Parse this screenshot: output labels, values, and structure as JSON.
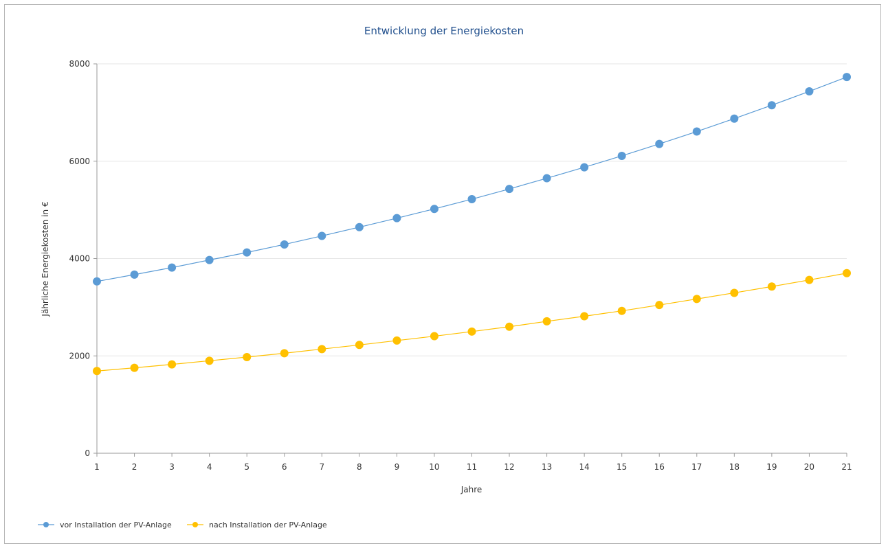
{
  "chart_data": {
    "type": "line",
    "title": "Entwicklung der Energiekosten",
    "xlabel": "Jahre",
    "ylabel": "Jährliche Energiekosten in €",
    "x": [
      1,
      2,
      3,
      4,
      5,
      6,
      7,
      8,
      9,
      10,
      11,
      12,
      13,
      14,
      15,
      16,
      17,
      18,
      19,
      20,
      21
    ],
    "ylim": [
      0,
      8000
    ],
    "yticks": [
      0,
      2000,
      4000,
      6000,
      8000
    ],
    "grid": "horizontal",
    "legend_position": "bottom-left",
    "series": [
      {
        "name": "vor Installation der PV-Anlage",
        "color": "#5b9bd5",
        "values": [
          3530,
          3670,
          3815,
          3970,
          4125,
          4290,
          4465,
          4645,
          4830,
          5020,
          5220,
          5430,
          5650,
          5875,
          6110,
          6355,
          6610,
          6875,
          7150,
          7435,
          7730
        ]
      },
      {
        "name": "nach Installation der PV-Anlage",
        "color": "#ffc000",
        "values": [
          1690,
          1755,
          1825,
          1900,
          1975,
          2055,
          2140,
          2225,
          2315,
          2405,
          2500,
          2600,
          2710,
          2815,
          2925,
          3045,
          3170,
          3295,
          3425,
          3560,
          3700
        ]
      }
    ]
  }
}
